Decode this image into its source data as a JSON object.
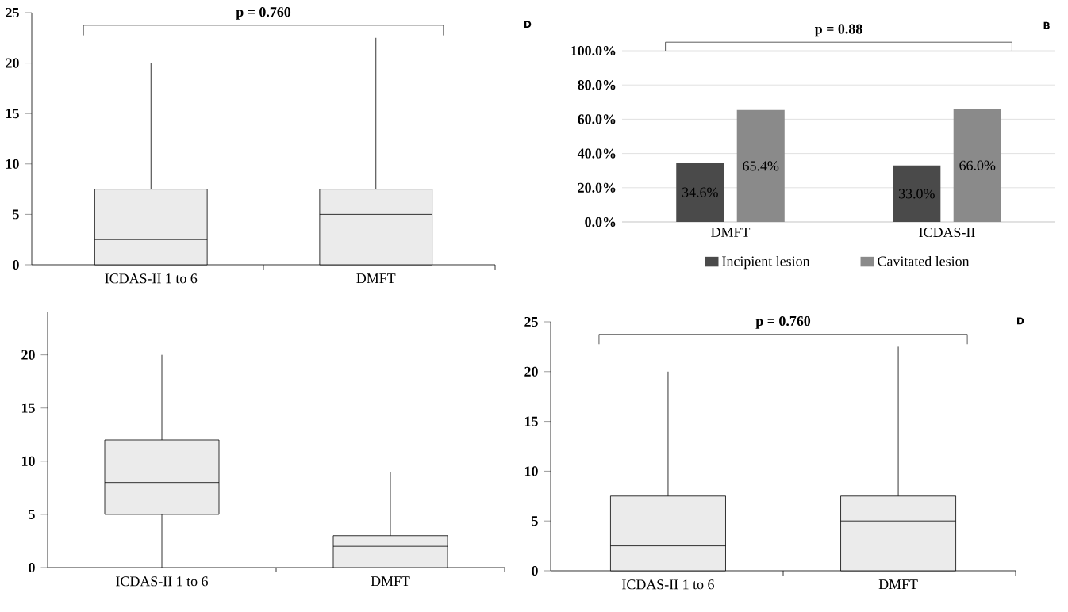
{
  "chart_data": [
    {
      "type": "box",
      "categories": [
        "ICDAS-II 1 to 6",
        "DMFT"
      ],
      "color": "#ebebeb",
      "boxes": [
        {
          "low": 0,
          "q1": 0,
          "median": 2.5,
          "q3": 7.5,
          "high": 20
        },
        {
          "low": 0,
          "q1": 0,
          "median": 5,
          "q3": 7.5,
          "high": 22.5
        }
      ],
      "ylim": [
        0,
        25
      ],
      "yticks": [
        0,
        5,
        10,
        15,
        20,
        25
      ],
      "annotations": [
        "p = 0.760",
        "D"
      ]
    },
    {
      "type": "bar",
      "categories": [
        "DMFT",
        "ICDAS-II"
      ],
      "series": [
        {
          "name": "Incipient lesion",
          "color": "#4a4a4a",
          "values": [
            34.6,
            33.0
          ],
          "value_labels": [
            "34.6%",
            "33.0%"
          ]
        },
        {
          "name": "Cavitated lesion",
          "color": "#8a8a8a",
          "values": [
            65.4,
            66.0
          ],
          "value_labels": [
            "65.4%",
            "66.0%"
          ]
        }
      ],
      "ylim": [
        0,
        100
      ],
      "yticks": [
        {
          "value": 0,
          "label": "0.0%"
        },
        {
          "value": 20,
          "label": "20.0%"
        },
        {
          "value": 40,
          "label": "40.0%"
        },
        {
          "value": 60,
          "label": "60.0%"
        },
        {
          "value": 80,
          "label": "80.0%"
        },
        {
          "value": 100,
          "label": "100.0%"
        }
      ],
      "grid": "y",
      "legend": "bottom",
      "annotations": [
        "p = 0.88",
        "B"
      ]
    },
    {
      "type": "box",
      "categories": [
        "ICDAS-II 1 to 6",
        "DMFT"
      ],
      "color": "#ebebeb",
      "boxes": [
        {
          "low": 0,
          "q1": 5,
          "median": 8,
          "q3": 12,
          "high": 20
        },
        {
          "low": 0,
          "q1": 0,
          "median": 2,
          "q3": 3,
          "high": 9
        }
      ],
      "ylim": [
        0,
        24
      ],
      "yticks": [
        0,
        5,
        10,
        15,
        20
      ]
    },
    {
      "type": "box",
      "categories": [
        "ICDAS-II 1 to 6",
        "DMFT"
      ],
      "color": "#ebebeb",
      "boxes": [
        {
          "low": 0,
          "q1": 0,
          "median": 2.5,
          "q3": 7.5,
          "high": 20
        },
        {
          "low": 0,
          "q1": 0,
          "median": 5,
          "q3": 7.5,
          "high": 22.5
        }
      ],
      "ylim": [
        0,
        25
      ],
      "yticks": [
        0,
        5,
        10,
        15,
        20,
        25
      ],
      "annotations": [
        "p = 0.760",
        "D"
      ]
    }
  ]
}
